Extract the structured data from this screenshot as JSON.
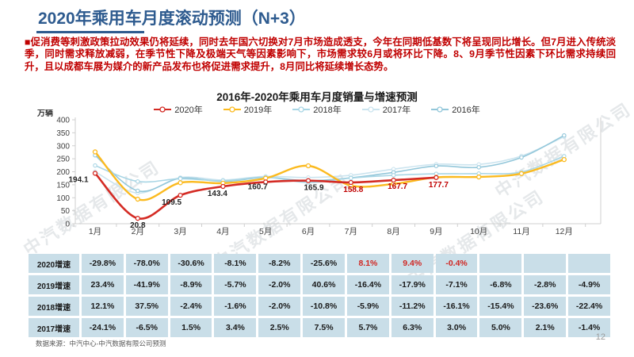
{
  "slide": {
    "title": "2020年乘用车月度滚动预测（N+3）",
    "bullet_marker": "■",
    "bullet_text": "促消费等刺激政策拉动效果仍将延续，同时去年国六切换对7月市场造成透支，今年在同期低基数下将呈现同比增长。但7月进入传统淡季，同时需求释放减弱，在季节性下降及极端天气等因素影响下，市场需求较6月或将环比下降。8、9月季节性因素下环比需求持续回升，且以成都车展为媒介的新产品发布也将促进需求提升，8月同比将延续增长态势。",
    "source": "数据来源：中汽中心-中汽数据有限公司预测",
    "page_number": "12",
    "watermark": "中汽数据有限公司",
    "accent_color": "#2E5B8F",
    "body_red": "#C00000"
  },
  "chart_data": {
    "type": "line",
    "title": "2016年-2020年乘用车月度销量与增速预测",
    "ylabel": "万辆",
    "xlabel": "",
    "ylim": [
      0,
      400
    ],
    "y_ticks": [
      0,
      50,
      100,
      150,
      200,
      250,
      300,
      350,
      400
    ],
    "grid": false,
    "legend_position": "top",
    "categories": [
      "1月",
      "2月",
      "3月",
      "4月",
      "5月",
      "6月",
      "7月",
      "8月",
      "9月",
      "10月",
      "11月",
      "12月"
    ],
    "series": [
      {
        "name": "2020年",
        "color": "#D42B24",
        "values": [
          194.1,
          20.8,
          109.5,
          143.4,
          160.7,
          165.9,
          158.8,
          167.7,
          177.7,
          null,
          null,
          null
        ],
        "point_labels": [
          "194.1",
          "20.8",
          "109.5",
          "143.4",
          "160.7",
          "165.9",
          "158.8",
          "167.7",
          "177.7"
        ],
        "point_label_colors": [
          "#262626",
          "#262626",
          "#262626",
          "#262626",
          "#262626",
          "#262626",
          "#C00000",
          "#C00000",
          "#C00000"
        ]
      },
      {
        "name": "2019年",
        "color": "#FBBA1F",
        "values": [
          276.5,
          94.5,
          157.8,
          156.0,
          175.1,
          223.0,
          146.9,
          153.3,
          178.4,
          180.0,
          193.0,
          247.0
        ]
      },
      {
        "name": "2018年",
        "color": "#A9D6E5",
        "values": [
          224.1,
          162.7,
          173.2,
          165.4,
          178.7,
          158.6,
          175.7,
          186.7,
          192.0,
          193.0,
          199.0,
          260.0
        ]
      },
      {
        "name": "2017年",
        "color": "#CBE4EF",
        "values": [
          199.9,
          118.3,
          177.5,
          168.1,
          182.3,
          177.8,
          186.7,
          210.2,
          228.9,
          228.1,
          260.5,
          335.1
        ]
      },
      {
        "name": "2016年",
        "color": "#93C7DA",
        "values": [
          263.5,
          126.6,
          174.9,
          162.6,
          177.9,
          165.4,
          176.6,
          197.7,
          222.2,
          217.2,
          255.1,
          339.8
        ]
      }
    ]
  },
  "table": {
    "rows": [
      {
        "label": "2020增速",
        "values": [
          "-29.8%",
          "-78.0%",
          "-30.6%",
          "-8.1%",
          "-8.2%",
          "-25.6%",
          "8.1%",
          "9.4%",
          "-0.4%",
          "",
          "",
          ""
        ],
        "red_cells": [
          6,
          7,
          8
        ]
      },
      {
        "label": "2019增速",
        "values": [
          "23.4%",
          "-41.9%",
          "-8.9%",
          "-5.7%",
          "-2.0%",
          "40.6%",
          "-16.4%",
          "-17.9%",
          "-7.1%",
          "-6.8%",
          "-2.8%",
          "-4.9%"
        ],
        "red_cells": []
      },
      {
        "label": "2018增速",
        "values": [
          "12.1%",
          "37.5%",
          "-2.4%",
          "-1.6%",
          "-2.0%",
          "-10.8%",
          "-5.9%",
          "-11.2%",
          "-16.1%",
          "-15.4%",
          "-23.6%",
          "-22.4%"
        ],
        "red_cells": []
      },
      {
        "label": "2017增速",
        "values": [
          "-24.1%",
          "-6.5%",
          "1.5%",
          "3.4%",
          "2.5%",
          "7.5%",
          "5.7%",
          "6.3%",
          "3.0%",
          "5.0%",
          "2.1%",
          "-1.4%"
        ],
        "red_cells": []
      }
    ]
  }
}
